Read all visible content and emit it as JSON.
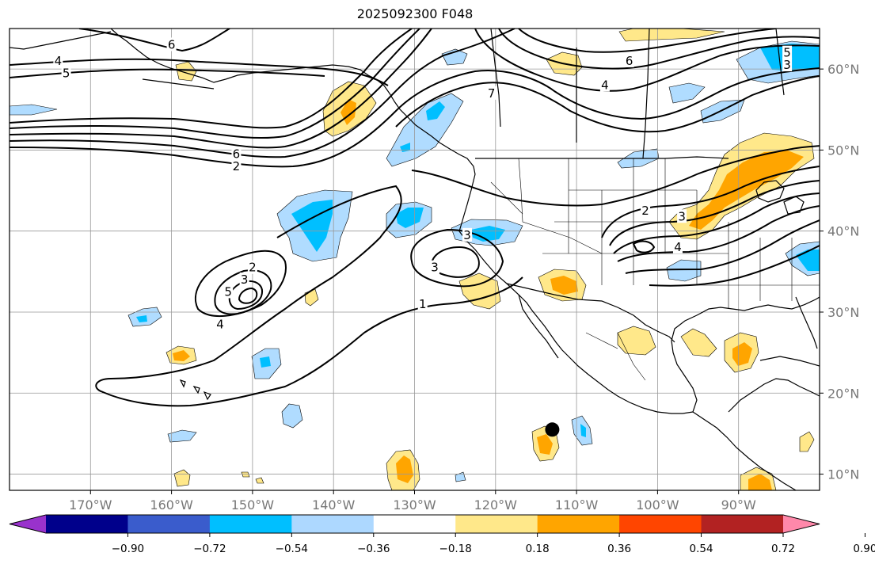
{
  "title": "2025092300 F048",
  "map": {
    "lon_range": [
      -180,
      -80
    ],
    "lat_range": [
      8,
      65
    ],
    "lon_ticks": [
      {
        "value": -170,
        "label": "170°W"
      },
      {
        "value": -160,
        "label": "160°W"
      },
      {
        "value": -150,
        "label": "150°W"
      },
      {
        "value": -140,
        "label": "140°W"
      },
      {
        "value": -130,
        "label": "130°W"
      },
      {
        "value": -120,
        "label": "120°W"
      },
      {
        "value": -110,
        "label": "110°W"
      },
      {
        "value": -100,
        "label": "100°W"
      },
      {
        "value": -90,
        "label": "90°W"
      }
    ],
    "lat_ticks": [
      {
        "value": 60,
        "label": "60°N"
      },
      {
        "value": 50,
        "label": "50°N"
      },
      {
        "value": 40,
        "label": "40°N"
      },
      {
        "value": 30,
        "label": "30°N"
      },
      {
        "value": 20,
        "label": "20°N"
      },
      {
        "value": 10,
        "label": "10°N"
      }
    ],
    "contour_labels": [
      {
        "text": "4",
        "lon": -174.0,
        "lat": 61.0
      },
      {
        "text": "5",
        "lon": -173.0,
        "lat": 59.5
      },
      {
        "text": "6",
        "lon": -160.0,
        "lat": 63.0
      },
      {
        "text": "6",
        "lon": -152.0,
        "lat": 49.5
      },
      {
        "text": "2",
        "lon": -152.0,
        "lat": 48.0
      },
      {
        "text": "7",
        "lon": -120.5,
        "lat": 57.0
      },
      {
        "text": "6",
        "lon": -103.5,
        "lat": 61.0
      },
      {
        "text": "4",
        "lon": -106.5,
        "lat": 58.0
      },
      {
        "text": "5",
        "lon": -84.0,
        "lat": 62.0
      },
      {
        "text": "3",
        "lon": -84.0,
        "lat": 60.5
      },
      {
        "text": "2",
        "lon": -101.5,
        "lat": 42.5
      },
      {
        "text": "3",
        "lon": -97.0,
        "lat": 41.8
      },
      {
        "text": "4",
        "lon": -97.5,
        "lat": 38.0
      },
      {
        "text": "3",
        "lon": -123.5,
        "lat": 39.5
      },
      {
        "text": "3",
        "lon": -127.5,
        "lat": 35.5
      },
      {
        "text": "1",
        "lon": -129.0,
        "lat": 31.0
      },
      {
        "text": "2",
        "lon": -150.0,
        "lat": 35.5
      },
      {
        "text": "3",
        "lon": -151.0,
        "lat": 34.0
      },
      {
        "text": "5",
        "lon": -153.0,
        "lat": 32.5
      },
      {
        "text": "4",
        "lon": -154.0,
        "lat": 28.5
      }
    ],
    "storm_marker": {
      "lon": -113.0,
      "lat": 15.5
    },
    "colors": {
      "land_outline": "#000000",
      "grid": "#999999",
      "contour": "#000000"
    }
  },
  "colorbar": {
    "levels": [
      "−0.90",
      "−0.72",
      "−0.54",
      "−0.36",
      "−0.18",
      "0.18",
      "0.36",
      "0.54",
      "0.72",
      "0.90"
    ],
    "colors": [
      "#9932cc",
      "#00008b",
      "#3a5ccc",
      "#00bfff",
      "#add8ff",
      "#ffffff",
      "#ffe88a",
      "#ffa500",
      "#ff4500",
      "#b22222",
      "#ff88aa"
    ]
  },
  "shading_colors": {
    "light_blue": "#b0dcff",
    "blue": "#00bfff",
    "light_yellow": "#ffe88a",
    "orange": "#ffa500"
  }
}
